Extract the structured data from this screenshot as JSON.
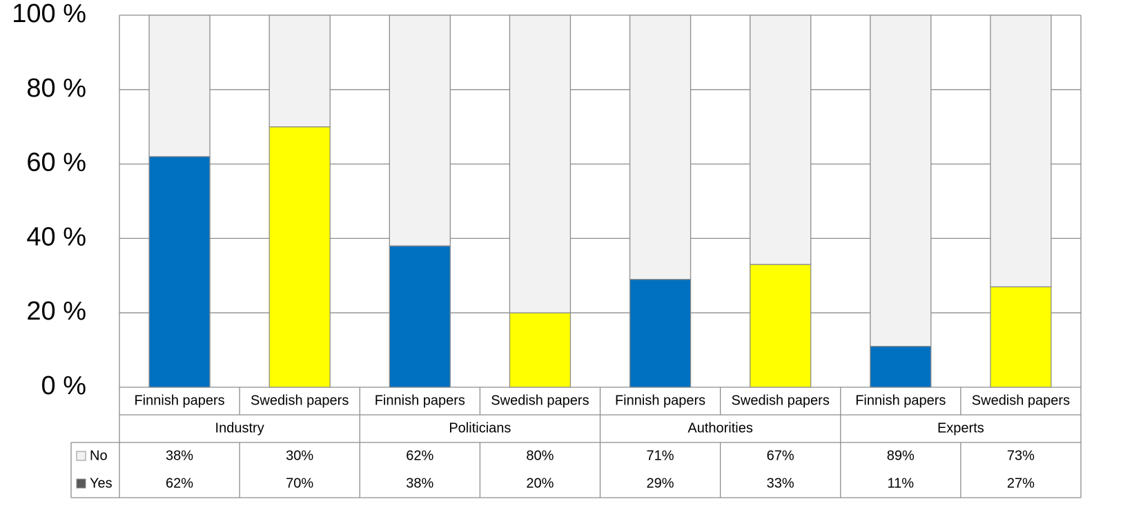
{
  "chart_data": {
    "type": "stacked_bar",
    "groups": [
      "Industry",
      "Politicians",
      "Authorities",
      "Experts"
    ],
    "categories": [
      "Finnish papers",
      "Swedish papers",
      "Finnish papers",
      "Swedish papers",
      "Finnish papers",
      "Swedish papers",
      "Finnish papers",
      "Swedish papers"
    ],
    "series": [
      {
        "name": "Yes",
        "color": "#595959",
        "bar_colors": [
          "#0070c0",
          "#ffff00",
          "#0070c0",
          "#ffff00",
          "#0070c0",
          "#ffff00",
          "#0070c0",
          "#ffff00"
        ],
        "values": [
          62,
          70,
          38,
          20,
          29,
          33,
          11,
          27
        ],
        "value_labels": [
          "62%",
          "70%",
          "38%",
          "20%",
          "29%",
          "33%",
          "11%",
          "27%"
        ]
      },
      {
        "name": "No",
        "color": "#f2f2f2",
        "values": [
          38,
          30,
          62,
          80,
          71,
          67,
          89,
          73
        ],
        "value_labels": [
          "38%",
          "30%",
          "62%",
          "80%",
          "71%",
          "67%",
          "89%",
          "73%"
        ]
      }
    ],
    "ylim": [
      0,
      100
    ],
    "yticks": [
      {
        "value": 0,
        "label": "0 %"
      },
      {
        "value": 20,
        "label": "20 %"
      },
      {
        "value": 40,
        "label": "40 %"
      },
      {
        "value": 60,
        "label": "60 %"
      },
      {
        "value": 80,
        "label": "80 %"
      },
      {
        "value": 100,
        "label": "100 %"
      }
    ],
    "grid": true
  }
}
